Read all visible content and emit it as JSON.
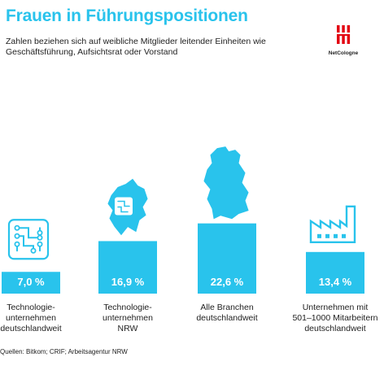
{
  "header": {
    "title": "Frauen in Führungspositionen",
    "subtitle": "Zahlen beziehen sich auf weibliche Mitglieder leitender Einheiten wie Geschäftsführung, Aufsichtsrat oder Vorstand"
  },
  "logo": {
    "text": "NetCologne"
  },
  "source": "Quellen: Bitkom; CRIF; Arbeitsagentur NRW",
  "colors": {
    "accent": "#29c3ec",
    "logo_red": "#e30613"
  },
  "chart_data": {
    "type": "bar",
    "title": "Frauen in Führungspositionen",
    "categories": [
      "Technologie-\nunternehmen\ndeutschlandweit",
      "Technologie-\nunternehmen\nNRW",
      "Alle Branchen\ndeutschlandweit",
      "Unternehmen mit\n501–1000 Mitarbeitern\ndeutschlandweit"
    ],
    "values": [
      7.0,
      16.9,
      22.6,
      13.4
    ],
    "value_labels": [
      "7,0 %",
      "16,9 %",
      "22,6 %",
      "13,4 %"
    ],
    "icons": [
      "circuit-chip-icon",
      "nrw-map-chip-icon",
      "germany-map-icon",
      "factory-icon"
    ],
    "unit": "%",
    "xlabel": "",
    "ylabel": "",
    "grid": false
  }
}
